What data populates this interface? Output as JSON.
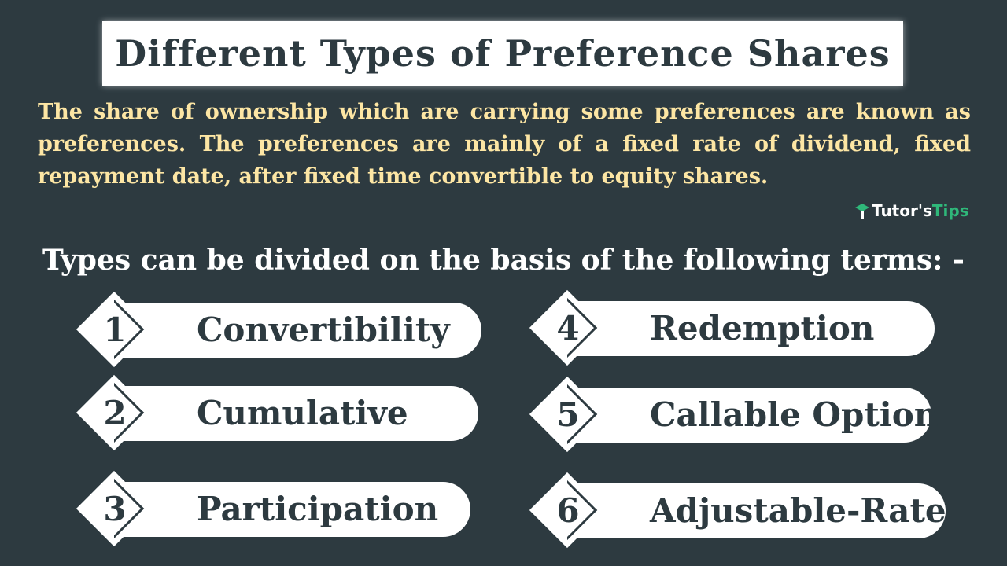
{
  "title": "Different Types of Preference Shares",
  "intro": "The share of ownership which are carrying some preferences are known as preferences. The preferences are mainly of a fixed rate of dividend, fixed repayment date, after fixed time convertible to equity shares.",
  "logo": {
    "part1": "Tutor's",
    "part2": "Tips"
  },
  "subheading": "Types can be divided on the basis of the following terms: -",
  "types": [
    {
      "number": "1",
      "label": "Convertibility"
    },
    {
      "number": "2",
      "label": "Cumulative"
    },
    {
      "number": "3",
      "label": "Participation"
    },
    {
      "number": "4",
      "label": "Redemption"
    },
    {
      "number": "5",
      "label": "Callable Option"
    },
    {
      "number": "6",
      "label": "Adjustable-Rate"
    }
  ],
  "colors": {
    "background": "#2d3a40",
    "intro_text": "#fde6a4",
    "logo_accent": "#2fb87a"
  }
}
